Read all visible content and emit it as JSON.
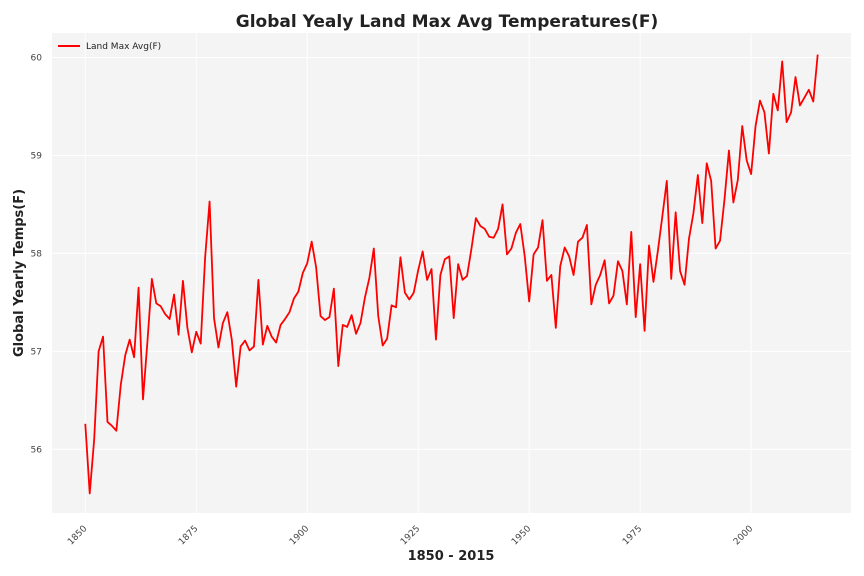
{
  "chart_data": {
    "type": "line",
    "title": "Global Yealy Land Max Avg Temperatures(F)",
    "xlabel": "1850 - 2015",
    "ylabel": "Global Yearly Temps(F)",
    "xlim": [
      1842.5,
      2022.5
    ],
    "ylim": [
      55.35,
      60.25
    ],
    "xticks": [
      1850,
      1875,
      1900,
      1925,
      1950,
      1975,
      2000
    ],
    "xtick_labels": [
      "1850",
      "1875",
      "1900",
      "1925",
      "1950",
      "1975",
      "2000"
    ],
    "yticks": [
      56,
      57,
      58,
      59,
      60
    ],
    "ytick_labels": [
      "56",
      "57",
      "58",
      "59",
      "60"
    ],
    "grid": true,
    "legend": {
      "position": "top-left"
    },
    "colors": {
      "line": "#ff0000",
      "plot_background": "#f4f4f4",
      "grid": "#ffffff"
    },
    "series": [
      {
        "name": "Land Max Avg(F)",
        "x": [
          1850,
          1851,
          1852,
          1853,
          1854,
          1855,
          1856,
          1857,
          1858,
          1859,
          1860,
          1861,
          1862,
          1863,
          1864,
          1865,
          1866,
          1867,
          1868,
          1869,
          1870,
          1871,
          1872,
          1873,
          1874,
          1875,
          1876,
          1877,
          1878,
          1879,
          1880,
          1881,
          1882,
          1883,
          1884,
          1885,
          1886,
          1887,
          1888,
          1889,
          1890,
          1891,
          1892,
          1893,
          1894,
          1895,
          1896,
          1897,
          1898,
          1899,
          1900,
          1901,
          1902,
          1903,
          1904,
          1905,
          1906,
          1907,
          1908,
          1909,
          1910,
          1911,
          1912,
          1913,
          1914,
          1915,
          1916,
          1917,
          1918,
          1919,
          1920,
          1921,
          1922,
          1923,
          1924,
          1925,
          1926,
          1927,
          1928,
          1929,
          1930,
          1931,
          1932,
          1933,
          1934,
          1935,
          1936,
          1937,
          1938,
          1939,
          1940,
          1941,
          1942,
          1943,
          1944,
          1945,
          1946,
          1947,
          1948,
          1949,
          1950,
          1951,
          1952,
          1953,
          1954,
          1955,
          1956,
          1957,
          1958,
          1959,
          1960,
          1961,
          1962,
          1963,
          1964,
          1965,
          1966,
          1967,
          1968,
          1969,
          1970,
          1971,
          1972,
          1973,
          1974,
          1975,
          1976,
          1977,
          1978,
          1979,
          1980,
          1981,
          1982,
          1983,
          1984,
          1985,
          1986,
          1987,
          1988,
          1989,
          1990,
          1991,
          1992,
          1993,
          1994,
          1995,
          1996,
          1997,
          1998,
          1999,
          2000,
          2001,
          2002,
          2003,
          2004,
          2005,
          2006,
          2007,
          2008,
          2009,
          2010,
          2011,
          2012,
          2013,
          2014,
          2015
        ],
        "values": [
          56.26,
          55.55,
          56.1,
          57.0,
          57.15,
          56.28,
          56.24,
          56.19,
          56.66,
          56.96,
          57.12,
          56.94,
          57.65,
          56.51,
          57.1,
          57.74,
          57.49,
          57.46,
          57.38,
          57.33,
          57.58,
          57.17,
          57.72,
          57.24,
          56.99,
          57.2,
          57.08,
          57.96,
          58.53,
          57.34,
          57.04,
          57.29,
          57.4,
          57.12,
          56.64,
          57.05,
          57.11,
          57.01,
          57.05,
          57.73,
          57.07,
          57.26,
          57.15,
          57.09,
          57.27,
          57.33,
          57.4,
          57.54,
          57.61,
          57.8,
          57.9,
          58.12,
          57.86,
          57.36,
          57.32,
          57.35,
          57.64,
          56.85,
          57.27,
          57.25,
          57.37,
          57.18,
          57.29,
          57.55,
          57.75,
          58.05,
          57.36,
          57.06,
          57.13,
          57.47,
          57.45,
          57.96,
          57.6,
          57.53,
          57.6,
          57.83,
          58.02,
          57.73,
          57.84,
          57.12,
          57.78,
          57.94,
          57.97,
          57.34,
          57.89,
          57.73,
          57.77,
          58.05,
          58.36,
          58.28,
          58.25,
          58.17,
          58.16,
          58.25,
          58.5,
          57.99,
          58.05,
          58.21,
          58.3,
          57.97,
          57.51,
          57.99,
          58.06,
          58.34,
          57.72,
          57.78,
          57.24,
          57.87,
          58.06,
          57.97,
          57.78,
          58.12,
          58.16,
          58.29,
          57.48,
          57.68,
          57.78,
          57.93,
          57.49,
          57.57,
          57.92,
          57.82,
          57.48,
          58.22,
          57.35,
          57.89,
          57.21,
          58.08,
          57.71,
          58.03,
          58.38,
          58.74,
          57.74,
          58.42,
          57.82,
          57.68,
          58.15,
          58.41,
          58.8,
          58.31,
          58.92,
          58.74,
          58.05,
          58.13,
          58.55,
          59.05,
          58.52,
          58.75,
          59.3,
          58.95,
          58.81,
          59.3,
          59.56,
          59.44,
          59.02,
          59.63,
          59.46,
          59.96,
          59.34,
          59.44,
          59.8,
          59.51,
          59.59,
          59.67,
          59.55,
          60.03
        ]
      }
    ]
  }
}
